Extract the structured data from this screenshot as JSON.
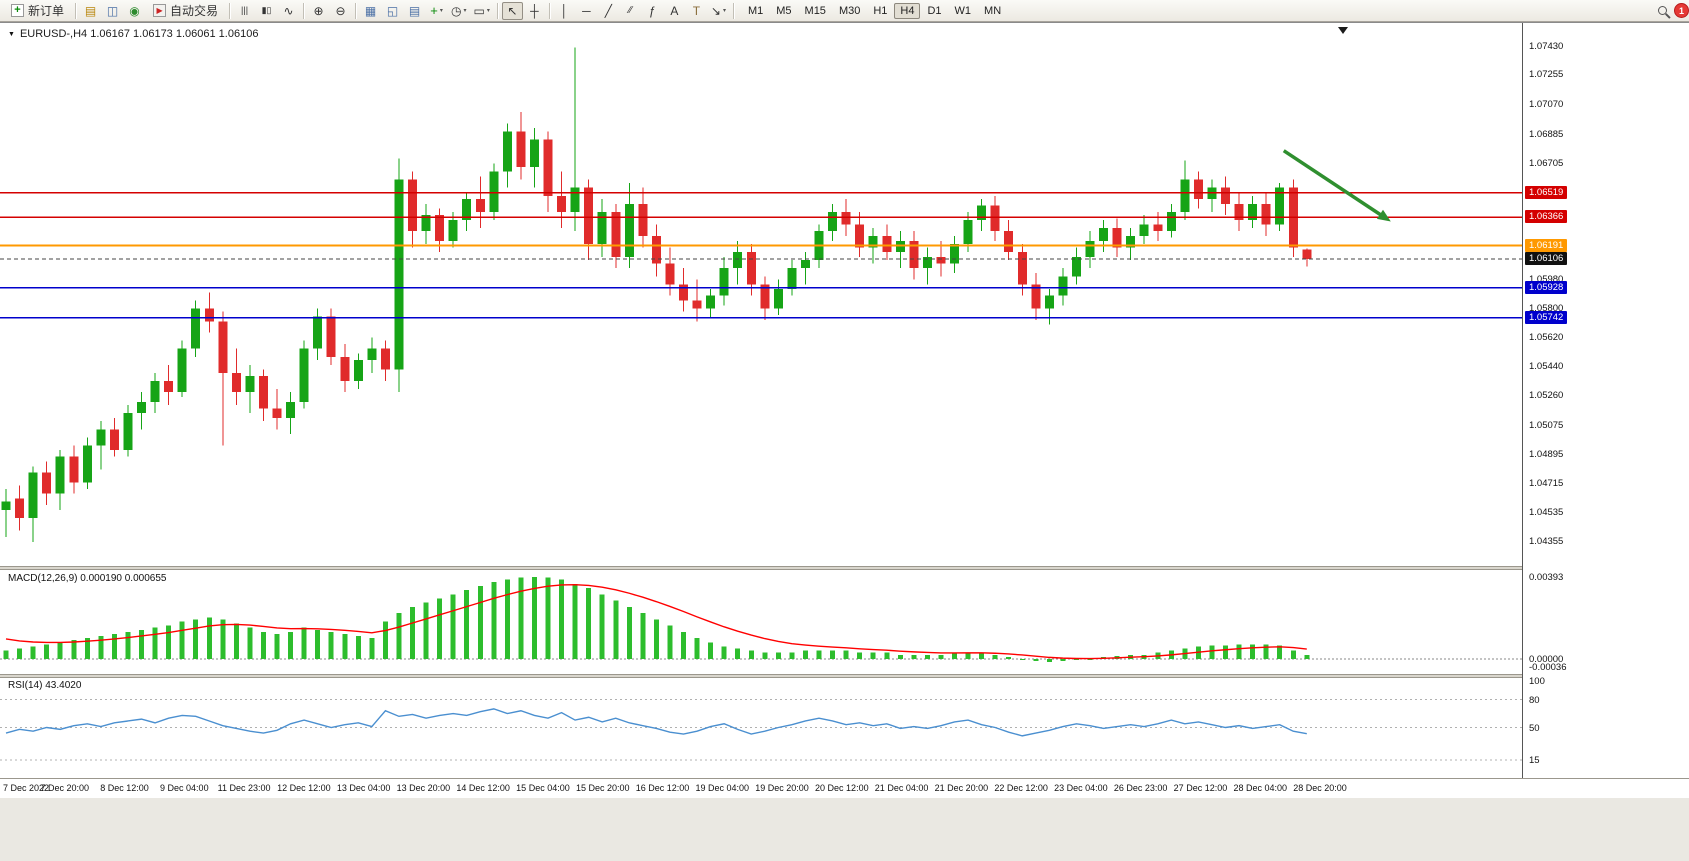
{
  "toolbar": {
    "new_order_label": "新订单",
    "autotrade_label": "自动交易",
    "timeframes": [
      "M1",
      "M5",
      "M15",
      "M30",
      "H1",
      "H4",
      "D1",
      "W1",
      "MN"
    ],
    "active_timeframe": "H4",
    "notification_count": "1",
    "items": [
      {
        "type": "labeled",
        "name": "new-order-button",
        "icon": "new-order-icon",
        "label_key": "new_order_label"
      },
      {
        "type": "sep"
      },
      {
        "type": "icon",
        "name": "profiles-button",
        "icon": "profiles-icon"
      },
      {
        "type": "icon",
        "name": "charts-window-button",
        "icon": "charts-grid-icon"
      },
      {
        "type": "icon",
        "name": "new-chart-button",
        "icon": "new-chart-icon"
      },
      {
        "type": "labeled",
        "name": "autotrade-button",
        "icon": "autotrade-icon",
        "label_key": "autotrade_label"
      },
      {
        "type": "sep"
      },
      {
        "type": "icon",
        "name": "bar-chart-button",
        "icon": "bar-chart-icon"
      },
      {
        "type": "icon",
        "name": "candlestick-button",
        "icon": "candlestick-icon"
      },
      {
        "type": "icon",
        "name": "line-chart-button",
        "icon": "line-chart-icon"
      },
      {
        "type": "sep"
      },
      {
        "type": "icon",
        "name": "zoom-in-button",
        "icon": "zoom-in-icon"
      },
      {
        "type": "icon",
        "name": "zoom-out-button",
        "icon": "zoom-out-icon"
      },
      {
        "type": "sep"
      },
      {
        "type": "icon",
        "name": "tile-windows-button",
        "icon": "tile-windows-icon"
      },
      {
        "type": "icon",
        "name": "cascade-windows-button",
        "icon": "cascade-windows-icon"
      },
      {
        "type": "icon",
        "name": "arrange-windows-button",
        "icon": "arrange-windows-icon"
      },
      {
        "type": "icon",
        "name": "indicators-button",
        "icon": "indicators-icon",
        "caret": true
      },
      {
        "type": "icon",
        "name": "periods-button",
        "icon": "periods-icon",
        "caret": true
      },
      {
        "type": "icon",
        "name": "templates-button",
        "icon": "templates-icon",
        "caret": true
      },
      {
        "type": "sep"
      },
      {
        "type": "icon",
        "name": "cursor-button",
        "icon": "cursor-icon",
        "active": true
      },
      {
        "type": "icon",
        "name": "crosshair-button",
        "icon": "crosshair-icon"
      },
      {
        "type": "sep"
      },
      {
        "type": "icon",
        "name": "vline-button",
        "icon": "vline-icon"
      },
      {
        "type": "icon",
        "name": "hline-button",
        "icon": "hline-icon"
      },
      {
        "type": "icon",
        "name": "trendline-button",
        "icon": "trendline-icon"
      },
      {
        "type": "icon",
        "name": "channel-button",
        "icon": "channel-icon"
      },
      {
        "type": "icon",
        "name": "fibonacci-button",
        "icon": "fibonacci-icon"
      },
      {
        "type": "icon",
        "name": "text-button",
        "icon": "text-icon"
      },
      {
        "type": "icon",
        "name": "label-button",
        "icon": "text-label-icon"
      },
      {
        "type": "icon",
        "name": "arrows-button",
        "icon": "arrows-icon",
        "caret": true
      },
      {
        "type": "sep"
      },
      {
        "type": "timeframes"
      },
      {
        "type": "spacer"
      },
      {
        "type": "icon",
        "name": "search-button",
        "icon": "search-icon"
      },
      {
        "type": "badge",
        "name": "notification-badge"
      }
    ]
  },
  "chart": {
    "symbol": "EURUSD-",
    "period": "H4",
    "full_title": "EURUSD-,H4  1.06167 1.06173 1.06061 1.06106"
  },
  "indicators": {
    "macd_label": "MACD(12,26,9) 0.000190 0.000655",
    "rsi_label": "RSI(14) 43.4020"
  },
  "chart_data": [
    {
      "type": "candlestick",
      "symbol": "EURUSD-",
      "timeframe": "H4",
      "ohlc_current": {
        "open": 1.06167,
        "high": 1.06173,
        "low": 1.06061,
        "close": 1.06106
      },
      "up_color": "#16a416",
      "down_color": "#e02b2b",
      "current_price": 1.06106,
      "ylim": [
        1.04355,
        1.0743
      ],
      "y_ticks": [
        1.0743,
        1.07255,
        1.0707,
        1.06885,
        1.06705,
        1.0598,
        1.058,
        1.0562,
        1.0544,
        1.0526,
        1.05075,
        1.04895,
        1.04715,
        1.04535,
        1.04355
      ],
      "hlines": [
        {
          "price": 1.06519,
          "color": "#d40000",
          "name": "resistance-line-upper",
          "width": 1.2
        },
        {
          "price": 1.06366,
          "color": "#d40000",
          "name": "resistance-line-lower",
          "width": 1.2
        },
        {
          "price": 1.06191,
          "color": "#ff9900",
          "name": "pivot-line-orange",
          "width": 2.2
        },
        {
          "price": 1.05928,
          "color": "#0000cc",
          "name": "support-line-upper",
          "width": 1.6
        },
        {
          "price": 1.05742,
          "color": "#0000cc",
          "name": "support-line-lower",
          "width": 1.6
        }
      ],
      "annotation_arrow": {
        "from": {
          "index": 94.3,
          "price": 1.0678
        },
        "to": {
          "index": 102.2,
          "price": 1.0634
        },
        "color": "#2f8f2f"
      },
      "x_labels": [
        "7 Dec 2022",
        "7 Dec 20:00",
        "8 Dec 12:00",
        "9 Dec 04:00",
        "11 Dec 23:00",
        "12 Dec 12:00",
        "13 Dec 04:00",
        "13 Dec 20:00",
        "14 Dec 12:00",
        "15 Dec 04:00",
        "15 Dec 20:00",
        "16 Dec 12:00",
        "19 Dec 04:00",
        "19 Dec 20:00",
        "20 Dec 12:00",
        "21 Dec 04:00",
        "21 Dec 20:00",
        "22 Dec 12:00",
        "23 Dec 04:00",
        "26 Dec 23:00",
        "27 Dec 12:00",
        "28 Dec 04:00",
        "28 Dec 20:00"
      ],
      "candles": [
        [
          1.0455,
          1.0468,
          1.0438,
          1.046
        ],
        [
          1.0462,
          1.047,
          1.0442,
          1.045
        ],
        [
          1.045,
          1.0482,
          1.0435,
          1.0478
        ],
        [
          1.0478,
          1.0485,
          1.0458,
          1.0465
        ],
        [
          1.0465,
          1.0492,
          1.0455,
          1.0488
        ],
        [
          1.0488,
          1.0495,
          1.0465,
          1.0472
        ],
        [
          1.0472,
          1.05,
          1.0468,
          1.0495
        ],
        [
          1.0495,
          1.051,
          1.048,
          1.0505
        ],
        [
          1.0505,
          1.0512,
          1.0488,
          1.0492
        ],
        [
          1.0492,
          1.052,
          1.0488,
          1.0515
        ],
        [
          1.0515,
          1.0528,
          1.0505,
          1.0522
        ],
        [
          1.0522,
          1.054,
          1.0515,
          1.0535
        ],
        [
          1.0535,
          1.0545,
          1.052,
          1.0528
        ],
        [
          1.0528,
          1.056,
          1.0525,
          1.0555
        ],
        [
          1.0555,
          1.0585,
          1.055,
          1.058
        ],
        [
          1.058,
          1.059,
          1.0565,
          1.0572
        ],
        [
          1.0572,
          1.0578,
          1.0495,
          1.054
        ],
        [
          1.054,
          1.0555,
          1.052,
          1.0528
        ],
        [
          1.0528,
          1.0545,
          1.0515,
          1.0538
        ],
        [
          1.0538,
          1.0542,
          1.051,
          1.0518
        ],
        [
          1.0518,
          1.053,
          1.0505,
          1.0512
        ],
        [
          1.0512,
          1.0528,
          1.0502,
          1.0522
        ],
        [
          1.0522,
          1.056,
          1.0518,
          1.0555
        ],
        [
          1.0555,
          1.058,
          1.0548,
          1.0575
        ],
        [
          1.0575,
          1.058,
          1.0545,
          1.055
        ],
        [
          1.055,
          1.0558,
          1.0528,
          1.0535
        ],
        [
          1.0535,
          1.0552,
          1.053,
          1.0548
        ],
        [
          1.0548,
          1.0562,
          1.054,
          1.0555
        ],
        [
          1.0555,
          1.056,
          1.0535,
          1.0542
        ],
        [
          1.0542,
          1.0673,
          1.0528,
          1.066
        ],
        [
          1.066,
          1.0665,
          1.0618,
          1.0628
        ],
        [
          1.0628,
          1.0645,
          1.062,
          1.0638
        ],
        [
          1.0638,
          1.0642,
          1.0615,
          1.0622
        ],
        [
          1.0622,
          1.064,
          1.0618,
          1.0635
        ],
        [
          1.0635,
          1.0652,
          1.0628,
          1.0648
        ],
        [
          1.0648,
          1.0662,
          1.063,
          1.064
        ],
        [
          1.064,
          1.067,
          1.0635,
          1.0665
        ],
        [
          1.0665,
          1.0695,
          1.0655,
          1.069
        ],
        [
          1.069,
          1.0702,
          1.066,
          1.0668
        ],
        [
          1.0668,
          1.0692,
          1.0655,
          1.0685
        ],
        [
          1.0685,
          1.069,
          1.064,
          1.065
        ],
        [
          1.065,
          1.0665,
          1.063,
          1.064
        ],
        [
          1.064,
          1.0742,
          1.0628,
          1.0655
        ],
        [
          1.0655,
          1.066,
          1.061,
          1.062
        ],
        [
          1.062,
          1.0648,
          1.0612,
          1.064
        ],
        [
          1.064,
          1.0645,
          1.0605,
          1.0612
        ],
        [
          1.0612,
          1.0658,
          1.0605,
          1.0645
        ],
        [
          1.0645,
          1.0655,
          1.0618,
          1.0625
        ],
        [
          1.0625,
          1.0632,
          1.06,
          1.0608
        ],
        [
          1.0608,
          1.0618,
          1.0588,
          1.0595
        ],
        [
          1.0595,
          1.0605,
          1.0578,
          1.0585
        ],
        [
          1.0585,
          1.0598,
          1.0572,
          1.058
        ],
        [
          1.058,
          1.0592,
          1.0574,
          1.0588
        ],
        [
          1.0588,
          1.0612,
          1.0582,
          1.0605
        ],
        [
          1.0605,
          1.0622,
          1.0595,
          1.0615
        ],
        [
          1.0615,
          1.062,
          1.0588,
          1.0595
        ],
        [
          1.0595,
          1.06,
          1.0573,
          1.058
        ],
        [
          1.058,
          1.0598,
          1.0576,
          1.0592
        ],
        [
          1.0592,
          1.061,
          1.0588,
          1.0605
        ],
        [
          1.0605,
          1.0615,
          1.0595,
          1.061
        ],
        [
          1.061,
          1.0632,
          1.0605,
          1.0628
        ],
        [
          1.0628,
          1.0645,
          1.0622,
          1.064
        ],
        [
          1.064,
          1.0648,
          1.0625,
          1.0632
        ],
        [
          1.0632,
          1.064,
          1.0612,
          1.0618
        ],
        [
          1.0618,
          1.063,
          1.0608,
          1.0625
        ],
        [
          1.0625,
          1.0632,
          1.061,
          1.0615
        ],
        [
          1.0615,
          1.0628,
          1.0605,
          1.0622
        ],
        [
          1.0622,
          1.0628,
          1.0598,
          1.0605
        ],
        [
          1.0605,
          1.0618,
          1.0595,
          1.0612
        ],
        [
          1.0612,
          1.0622,
          1.06,
          1.0608
        ],
        [
          1.0608,
          1.0625,
          1.0602,
          1.062
        ],
        [
          1.062,
          1.064,
          1.0615,
          1.0635
        ],
        [
          1.0635,
          1.0648,
          1.0628,
          1.0644
        ],
        [
          1.0644,
          1.065,
          1.0622,
          1.0628
        ],
        [
          1.0628,
          1.0635,
          1.061,
          1.0615
        ],
        [
          1.0615,
          1.062,
          1.0588,
          1.0595
        ],
        [
          1.0595,
          1.0602,
          1.0573,
          1.058
        ],
        [
          1.058,
          1.0592,
          1.057,
          1.0588
        ],
        [
          1.0588,
          1.0605,
          1.0582,
          1.06
        ],
        [
          1.06,
          1.0618,
          1.0595,
          1.0612
        ],
        [
          1.0612,
          1.0628,
          1.0605,
          1.0622
        ],
        [
          1.0622,
          1.0635,
          1.0615,
          1.063
        ],
        [
          1.063,
          1.0636,
          1.0612,
          1.0618
        ],
        [
          1.0618,
          1.063,
          1.061,
          1.0625
        ],
        [
          1.0625,
          1.0638,
          1.062,
          1.0632
        ],
        [
          1.0632,
          1.064,
          1.0622,
          1.0628
        ],
        [
          1.0628,
          1.0645,
          1.0624,
          1.064
        ],
        [
          1.064,
          1.0672,
          1.0635,
          1.066
        ],
        [
          1.066,
          1.0665,
          1.0642,
          1.0648
        ],
        [
          1.0648,
          1.066,
          1.064,
          1.0655
        ],
        [
          1.0655,
          1.0662,
          1.0638,
          1.0645
        ],
        [
          1.0645,
          1.0652,
          1.0628,
          1.0635
        ],
        [
          1.0635,
          1.065,
          1.063,
          1.0645
        ],
        [
          1.0645,
          1.0652,
          1.0625,
          1.0632
        ],
        [
          1.0632,
          1.0658,
          1.0628,
          1.0655
        ],
        [
          1.0655,
          1.066,
          1.0612,
          1.0618
        ],
        [
          1.06167,
          1.06173,
          1.06061,
          1.06106
        ]
      ]
    },
    {
      "type": "bar",
      "name": "MACD(12,26,9)",
      "current_macd": 0.00019,
      "current_signal": 0.000655,
      "values_scale": 0.0001,
      "y_ticks": [
        0.00393,
        0.0,
        -0.00036
      ],
      "bar_color": "#2dbd2d",
      "signal_color": "#ff0000",
      "values": [
        4,
        5,
        6,
        7,
        8,
        9,
        10,
        11,
        12,
        13,
        14,
        15,
        16,
        18,
        19,
        20,
        19,
        17,
        15,
        13,
        12,
        13,
        15,
        14,
        13,
        12,
        11,
        10,
        18,
        22,
        25,
        27,
        29,
        31,
        33,
        35,
        37,
        38,
        39,
        39.3,
        39,
        38,
        36,
        34,
        31,
        28,
        25,
        22,
        19,
        16,
        13,
        10,
        8,
        6,
        5,
        4,
        3,
        3,
        3,
        4,
        4,
        4,
        4,
        3,
        3,
        3,
        2,
        2,
        2,
        2,
        3,
        3,
        3,
        2,
        1,
        0,
        -1,
        -1.5,
        -1,
        -0.5,
        0,
        1,
        1.5,
        2,
        2,
        3,
        4,
        5,
        6,
        6.5,
        6.5,
        7,
        7,
        7,
        6.5,
        4,
        2
      ]
    },
    {
      "type": "line",
      "name": "RSI(14)",
      "current": 43.402,
      "ylim": [
        0,
        100
      ],
      "levels": [
        80,
        50,
        15
      ],
      "y_ticks": [
        100,
        80,
        50,
        15
      ],
      "line_color": "#4a8fd0",
      "values": [
        44,
        48,
        46,
        50,
        48,
        52,
        54,
        51,
        55,
        57,
        59,
        55,
        60,
        63,
        62,
        57,
        52,
        49,
        46,
        44,
        47,
        54,
        58,
        54,
        50,
        53,
        55,
        51,
        68,
        62,
        64,
        60,
        63,
        65,
        63,
        67,
        70,
        65,
        68,
        63,
        60,
        66,
        58,
        61,
        56,
        60,
        55,
        52,
        49,
        45,
        43,
        46,
        51,
        54,
        48,
        43,
        46,
        50,
        53,
        57,
        60,
        57,
        53,
        55,
        52,
        54,
        49,
        51,
        49,
        52,
        56,
        58,
        53,
        50,
        45,
        41,
        44,
        47,
        51,
        54,
        52,
        49,
        51,
        53,
        51,
        54,
        58,
        54,
        56,
        53,
        50,
        52,
        49,
        51,
        53,
        46,
        43.4
      ]
    }
  ]
}
